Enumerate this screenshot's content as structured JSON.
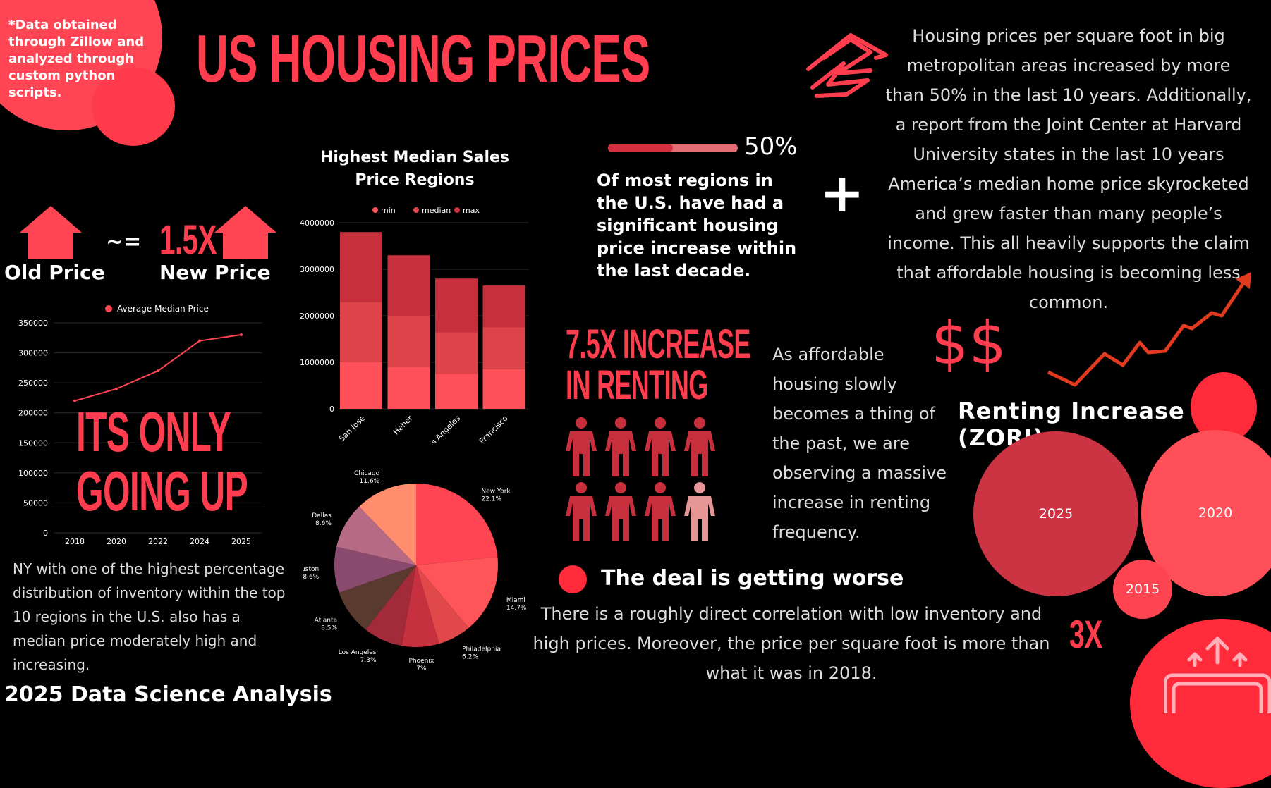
{
  "header": {
    "note": "*Data obtained through Zillow and analyzed through custom python scripts.",
    "title": "US HOUSING PRICES",
    "footer": "2025 Data Science Analysis"
  },
  "price_compare": {
    "old_label": "Old Price",
    "approx": "~=",
    "multiplier": "1.5X",
    "new_label": "New Price"
  },
  "intro_paragraph": "Housing prices per square foot in big metropolitan areas increased by more than 50% in the last 10 years. Additionally, a report from the Joint Center at Harvard University states in the last 10 years America’s median home price skyrocketed and grew faster than many people’s income. This all heavily supports the claim that affordable housing is becoming less common.",
  "progress": {
    "label": "50%",
    "fraction": 0.5,
    "text": "Of most regions in the U.S. have had a significant housing price increase within the last decade."
  },
  "plus": "+",
  "dollars": "$$",
  "renting": {
    "headline_line1": "7.5X INCREASE",
    "headline_line2": "IN RENTING",
    "people_total": 8,
    "people_highlight": 1
  },
  "afford_paragraph": "As affordable housing slowly becomes a thing of the past, we are observing a massive increase in renting frequency.",
  "going_up": {
    "line1": "ITS ONLY",
    "line2": "GOING UP"
  },
  "ny_paragraph": "NY with one of the highest percentage distribution of inventory within the top 10 regions in the U.S. also has a median price moderately high and increasing.",
  "deal": {
    "title": "The deal is getting worse",
    "paragraph": "There is a roughly direct correlation with low inventory and high prices. Moreover, the price per square foot is more than what it was in 2018."
  },
  "zori": {
    "title": "Renting Increase (ZORI)",
    "multiplier": "3X"
  },
  "colors": {
    "accent": "#ff3d4e",
    "dark_red": "#c72f3c",
    "mid_red": "#dd4349",
    "light_red": "#ff4f58",
    "pale": "#e69694"
  },
  "icons": [
    "house-icon",
    "zillow-logo-icon",
    "plus-icon",
    "trend-arrow-icon",
    "person-icon",
    "money-up-icon"
  ],
  "chart_data": [
    {
      "type": "line",
      "title": "",
      "legend": [
        "Average Median Price"
      ],
      "x": [
        "2018",
        "2020",
        "2022",
        "2024",
        "2025"
      ],
      "series": [
        {
          "name": "Average Median Price",
          "values": [
            220000,
            240000,
            270000,
            320000,
            330000
          ]
        }
      ],
      "yticks": [
        "0",
        "50000",
        "100000",
        "150000",
        "200000",
        "250000",
        "300000",
        "350000"
      ],
      "ylim": [
        0,
        350000
      ],
      "grid": true,
      "legend_position": "top"
    },
    {
      "type": "bar",
      "stacked": true,
      "title": "Highest Median Sales Price Regions",
      "categories": [
        "San Jose",
        "Heber",
        "Los Angeles",
        "San Francisco"
      ],
      "series": [
        {
          "name": "min",
          "values": [
            1000000,
            900000,
            750000,
            850000
          ]
        },
        {
          "name": "median",
          "values": [
            1300000,
            1100000,
            900000,
            900000
          ]
        },
        {
          "name": "max",
          "values": [
            1500000,
            1300000,
            1150000,
            900000
          ]
        }
      ],
      "yticks": [
        "0",
        "1000000",
        "2000000",
        "3000000",
        "4000000"
      ],
      "ylim": [
        0,
        4000000
      ],
      "grid": true,
      "legend_position": "top"
    },
    {
      "type": "pie",
      "title": "",
      "slices": [
        {
          "label": "New York",
          "pct": "22.1%",
          "value": 22.1
        },
        {
          "label": "Miami",
          "pct": "14.7%",
          "value": 14.7
        },
        {
          "label": "Philadelphia",
          "pct": "6.2%",
          "value": 6.2
        },
        {
          "label": "Phoenix",
          "pct": "7%",
          "value": 7.0
        },
        {
          "label": "Los Angeles",
          "pct": "7.3%",
          "value": 7.3
        },
        {
          "label": "Atlanta",
          "pct": "8.5%",
          "value": 8.5
        },
        {
          "label": "Houston",
          "pct": "8.6%",
          "value": 8.6
        },
        {
          "label": "Dallas",
          "pct": "8.6%",
          "value": 8.6
        },
        {
          "label": "Chicago",
          "pct": "11.6%",
          "value": 11.6
        }
      ]
    },
    {
      "type": "bubble",
      "title": "Renting Increase (ZORI)",
      "bubbles": [
        {
          "label": "2025",
          "value": 3.0
        },
        {
          "label": "2020",
          "value": 2.0
        },
        {
          "label": "2015",
          "value": 1.0
        }
      ]
    }
  ]
}
